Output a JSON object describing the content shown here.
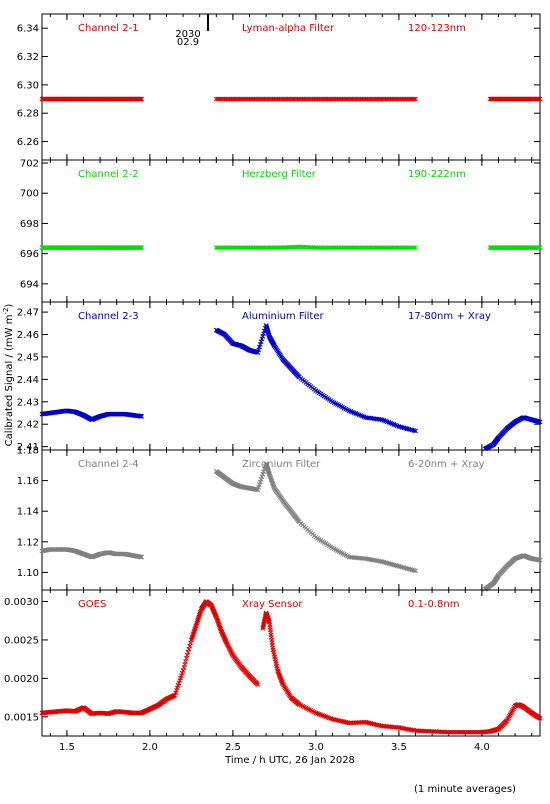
{
  "figure": {
    "ylabel": "Calibrated Signal / (mW m",
    "ylabel_sup": "-2",
    "ylabel_close": ")",
    "xlabel": "Time / h UTC, 26 Jan 2028",
    "footnote": "(1 minute averages)",
    "marker_text": [
      "2030",
      "02.9"
    ]
  },
  "colors": {
    "red": "#e00000",
    "green": "#00dd00",
    "blue": "#0000cc",
    "gray": "#808080",
    "axis": "#000000"
  },
  "chart_data": [
    {
      "type": "scatter",
      "panel": "channel-2-1",
      "labels": [
        "Channel 2-1",
        "Lyman-alpha Filter",
        "120-123nm"
      ],
      "color": "red",
      "xlim": [
        1.35,
        4.35
      ],
      "ylim": [
        6.247,
        6.35
      ],
      "yticks": [
        6.26,
        6.28,
        6.3,
        6.32,
        6.34
      ],
      "ytick_labels": [
        "6.26",
        "6.28",
        "6.30",
        "6.32",
        "6.34"
      ],
      "segments": [
        {
          "x": [
            1.35,
            1.4,
            1.45,
            1.5,
            1.55,
            1.6,
            1.65,
            1.7,
            1.75,
            1.8,
            1.85,
            1.9,
            1.95
          ],
          "y": [
            6.29,
            6.29,
            6.29,
            6.29,
            6.29,
            6.29,
            6.29,
            6.29,
            6.29,
            6.29,
            6.29,
            6.29,
            6.29
          ]
        },
        {
          "x": [
            2.4,
            2.5,
            2.6,
            2.7,
            2.8,
            2.9,
            3.0,
            3.1,
            3.2,
            3.3,
            3.4,
            3.5,
            3.6
          ],
          "y": [
            6.29,
            6.29,
            6.29,
            6.29,
            6.29,
            6.29,
            6.29,
            6.29,
            6.29,
            6.29,
            6.29,
            6.29,
            6.29
          ]
        },
        {
          "x": [
            4.05,
            4.1,
            4.15,
            4.2,
            4.25,
            4.3,
            4.35
          ],
          "y": [
            6.29,
            6.29,
            6.29,
            6.29,
            6.29,
            6.29,
            6.29
          ]
        }
      ]
    },
    {
      "type": "scatter",
      "panel": "channel-2-2",
      "labels": [
        "Channel 2-2",
        "Herzberg Filter",
        "190-222nm"
      ],
      "color": "green",
      "xlim": [
        1.35,
        4.35
      ],
      "ylim": [
        692.8,
        702.2
      ],
      "yticks": [
        694,
        696,
        698,
        700,
        702
      ],
      "ytick_labels": [
        "694",
        "696",
        "698",
        "700",
        "702"
      ],
      "segments": [
        {
          "x": [
            1.35,
            1.4,
            1.45,
            1.5,
            1.55,
            1.6,
            1.65,
            1.7,
            1.75,
            1.8,
            1.85,
            1.9,
            1.95
          ],
          "y": [
            696.4,
            696.4,
            696.4,
            696.4,
            696.4,
            696.4,
            696.4,
            696.4,
            696.4,
            696.4,
            696.4,
            696.4,
            696.4
          ]
        },
        {
          "x": [
            2.4,
            2.5,
            2.6,
            2.7,
            2.8,
            2.9,
            3.0,
            3.1,
            3.2,
            3.3,
            3.4,
            3.5,
            3.6
          ],
          "y": [
            696.4,
            696.4,
            696.4,
            696.4,
            696.4,
            696.45,
            696.4,
            696.4,
            696.4,
            696.4,
            696.4,
            696.4,
            696.4
          ]
        },
        {
          "x": [
            4.05,
            4.1,
            4.15,
            4.2,
            4.25,
            4.3,
            4.35
          ],
          "y": [
            696.4,
            696.4,
            696.4,
            696.4,
            696.4,
            696.4,
            696.4
          ]
        }
      ]
    },
    {
      "type": "scatter",
      "panel": "channel-2-3",
      "labels": [
        "Channel 2-3",
        "Aluminium Filter",
        "17-80nm + Xray"
      ],
      "color": "blue",
      "xlim": [
        1.35,
        4.35
      ],
      "ylim": [
        2.4085,
        2.4745
      ],
      "yticks": [
        2.41,
        2.42,
        2.43,
        2.44,
        2.45,
        2.46,
        2.47
      ],
      "ytick_labels": [
        "2.41",
        "2.42",
        "2.43",
        "2.44",
        "2.45",
        "2.46",
        "2.47"
      ],
      "segments": [
        {
          "x": [
            1.35,
            1.4,
            1.45,
            1.5,
            1.55,
            1.6,
            1.65,
            1.7,
            1.75,
            1.8,
            1.85,
            1.9,
            1.95
          ],
          "y": [
            2.4245,
            2.425,
            2.4255,
            2.426,
            2.4255,
            2.424,
            2.422,
            2.4235,
            2.4245,
            2.4245,
            2.4245,
            2.424,
            2.4235
          ]
        },
        {
          "x": [
            2.4,
            2.45,
            2.5,
            2.55,
            2.6,
            2.65,
            2.7,
            2.72,
            2.75,
            2.8,
            2.85,
            2.9,
            3.0,
            3.1,
            3.2,
            3.3,
            3.4,
            3.5,
            3.6
          ],
          "y": [
            2.462,
            2.46,
            2.456,
            2.455,
            2.453,
            2.452,
            2.464,
            2.459,
            2.455,
            2.449,
            2.445,
            2.441,
            2.435,
            2.43,
            2.426,
            2.423,
            2.422,
            2.419,
            2.417
          ]
        },
        {
          "x": [
            4.02,
            4.07,
            4.1,
            4.15,
            4.2,
            4.25,
            4.3,
            4.35
          ],
          "y": [
            2.409,
            2.411,
            2.414,
            2.418,
            2.421,
            2.423,
            2.422,
            2.421
          ]
        }
      ]
    },
    {
      "type": "scatter",
      "panel": "channel-2-4",
      "labels": [
        "Channel 2-4",
        "Zirconium Filter",
        "6-20nm + Xray"
      ],
      "color": "gray",
      "xlim": [
        1.35,
        4.35
      ],
      "ylim": [
        1.0885,
        1.18
      ],
      "yticks": [
        1.1,
        1.12,
        1.14,
        1.16,
        1.18
      ],
      "ytick_labels": [
        "1.10",
        "1.12",
        "1.14",
        "1.16",
        "1.18"
      ],
      "segments": [
        {
          "x": [
            1.35,
            1.4,
            1.45,
            1.5,
            1.55,
            1.6,
            1.65,
            1.7,
            1.75,
            1.8,
            1.85,
            1.9,
            1.95
          ],
          "y": [
            1.114,
            1.115,
            1.115,
            1.115,
            1.114,
            1.112,
            1.11,
            1.112,
            1.113,
            1.112,
            1.112,
            1.111,
            1.11
          ]
        },
        {
          "x": [
            2.4,
            2.45,
            2.5,
            2.55,
            2.6,
            2.65,
            2.7,
            2.72,
            2.75,
            2.8,
            2.85,
            2.9,
            3.0,
            3.1,
            3.2,
            3.3,
            3.4,
            3.5,
            3.6
          ],
          "y": [
            1.166,
            1.162,
            1.158,
            1.156,
            1.155,
            1.154,
            1.171,
            1.164,
            1.155,
            1.147,
            1.14,
            1.133,
            1.123,
            1.116,
            1.11,
            1.109,
            1.107,
            1.104,
            1.101
          ]
        },
        {
          "x": [
            4.02,
            4.07,
            4.1,
            4.15,
            4.2,
            4.25,
            4.3,
            4.35
          ],
          "y": [
            1.089,
            1.093,
            1.098,
            1.104,
            1.109,
            1.111,
            1.109,
            1.108
          ]
        }
      ]
    },
    {
      "type": "scatter",
      "panel": "goes",
      "labels": [
        "GOES",
        "Xray Sensor",
        "0.1-0.8nm"
      ],
      "color": "red",
      "xlim": [
        1.35,
        4.35
      ],
      "ylim": [
        0.00125,
        0.00315
      ],
      "yticks": [
        0.0015,
        0.002,
        0.0025,
        0.003
      ],
      "ytick_labels": [
        "0.0015",
        "0.0020",
        "0.0025",
        "0.0030"
      ],
      "segments": [
        {
          "x": [
            1.35,
            1.4,
            1.45,
            1.5,
            1.55,
            1.6,
            1.65,
            1.7,
            1.75,
            1.8,
            1.85,
            1.9,
            1.95,
            2.0,
            2.05,
            2.1,
            2.15,
            2.2,
            2.25,
            2.28,
            2.31,
            2.34,
            2.37,
            2.4,
            2.43,
            2.46,
            2.5,
            2.55,
            2.6,
            2.65
          ],
          "y": [
            0.00155,
            0.00156,
            0.00157,
            0.00158,
            0.00157,
            0.00162,
            0.00154,
            0.00155,
            0.00154,
            0.00157,
            0.00156,
            0.00155,
            0.00155,
            0.0016,
            0.00165,
            0.00173,
            0.00178,
            0.0021,
            0.0025,
            0.0027,
            0.0029,
            0.003,
            0.00295,
            0.0028,
            0.00262,
            0.00247,
            0.0023,
            0.00215,
            0.00203,
            0.00192
          ]
        },
        {
          "x": [
            2.68,
            2.7,
            2.72,
            2.74,
            2.77,
            2.8,
            2.85,
            2.9,
            3.0,
            3.1,
            3.2,
            3.3,
            3.4,
            3.5,
            3.6,
            3.7,
            3.8,
            3.9,
            4.0,
            4.05,
            4.1,
            4.15,
            4.2,
            4.22,
            4.25,
            4.3,
            4.35
          ],
          "y": [
            0.00265,
            0.00285,
            0.00273,
            0.0024,
            0.0021,
            0.00193,
            0.00175,
            0.00166,
            0.00155,
            0.00147,
            0.00142,
            0.00143,
            0.00138,
            0.00136,
            0.00132,
            0.00131,
            0.0013,
            0.0013,
            0.0013,
            0.00131,
            0.00134,
            0.00145,
            0.00164,
            0.00166,
            0.00163,
            0.00155,
            0.00148
          ]
        }
      ]
    }
  ],
  "xaxis": {
    "ticks": [
      1.5,
      2.0,
      2.5,
      3.0,
      3.5,
      4.0
    ],
    "tick_labels": [
      "1.5",
      "2.0",
      "2.5",
      "3.0",
      "3.5",
      "4.0"
    ],
    "xlim": [
      1.35,
      4.35
    ],
    "marker_x": 2.35
  }
}
